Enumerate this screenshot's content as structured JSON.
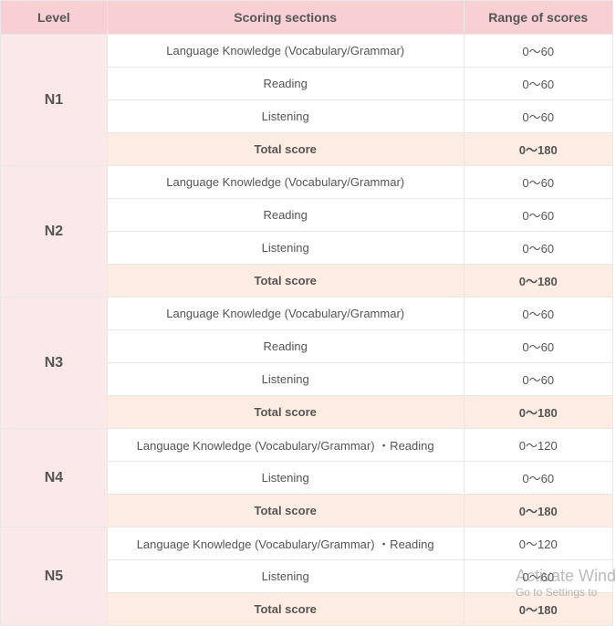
{
  "columns": [
    "Level",
    "Scoring sections",
    "Range of scores"
  ],
  "colors": {
    "header_bg": "#f8d0d3",
    "level_bg": "#fbe9ea",
    "total_bg": "#fcece1",
    "row_bg": "#ffffff",
    "border": "#e8e8e8",
    "text": "#555555"
  },
  "levels": [
    {
      "name": "N1",
      "rows": [
        {
          "section": "Language Knowledge (Vocabulary/Grammar)",
          "range": "0～60",
          "total": false
        },
        {
          "section": "Reading",
          "range": "0～60",
          "total": false
        },
        {
          "section": "Listening",
          "range": "0～60",
          "total": false
        },
        {
          "section": "Total score",
          "range": "0～180",
          "total": true
        }
      ]
    },
    {
      "name": "N2",
      "rows": [
        {
          "section": "Language Knowledge (Vocabulary/Grammar)",
          "range": "0～60",
          "total": false
        },
        {
          "section": "Reading",
          "range": "0～60",
          "total": false
        },
        {
          "section": "Listening",
          "range": "0～60",
          "total": false
        },
        {
          "section": "Total score",
          "range": "0～180",
          "total": true
        }
      ]
    },
    {
      "name": "N3",
      "rows": [
        {
          "section": "Language Knowledge (Vocabulary/Grammar)",
          "range": "0～60",
          "total": false
        },
        {
          "section": "Reading",
          "range": "0～60",
          "total": false
        },
        {
          "section": "Listening",
          "range": "0～60",
          "total": false
        },
        {
          "section": "Total score",
          "range": "0～180",
          "total": true
        }
      ]
    },
    {
      "name": "N4",
      "rows": [
        {
          "section": "Language Knowledge (Vocabulary/Grammar) ・Reading",
          "range": "0～120",
          "total": false
        },
        {
          "section": "Listening",
          "range": "0～60",
          "total": false
        },
        {
          "section": "Total score",
          "range": "0～180",
          "total": true
        }
      ]
    },
    {
      "name": "N5",
      "rows": [
        {
          "section": "Language Knowledge (Vocabulary/Grammar) ・Reading",
          "range": "0～120",
          "total": false
        },
        {
          "section": "Listening",
          "range": "0～60",
          "total": false
        },
        {
          "section": "Total score",
          "range": "0～180",
          "total": true
        }
      ]
    }
  ],
  "watermark": {
    "line1": "Activate Wind",
    "line2": "Go to Settings to"
  }
}
